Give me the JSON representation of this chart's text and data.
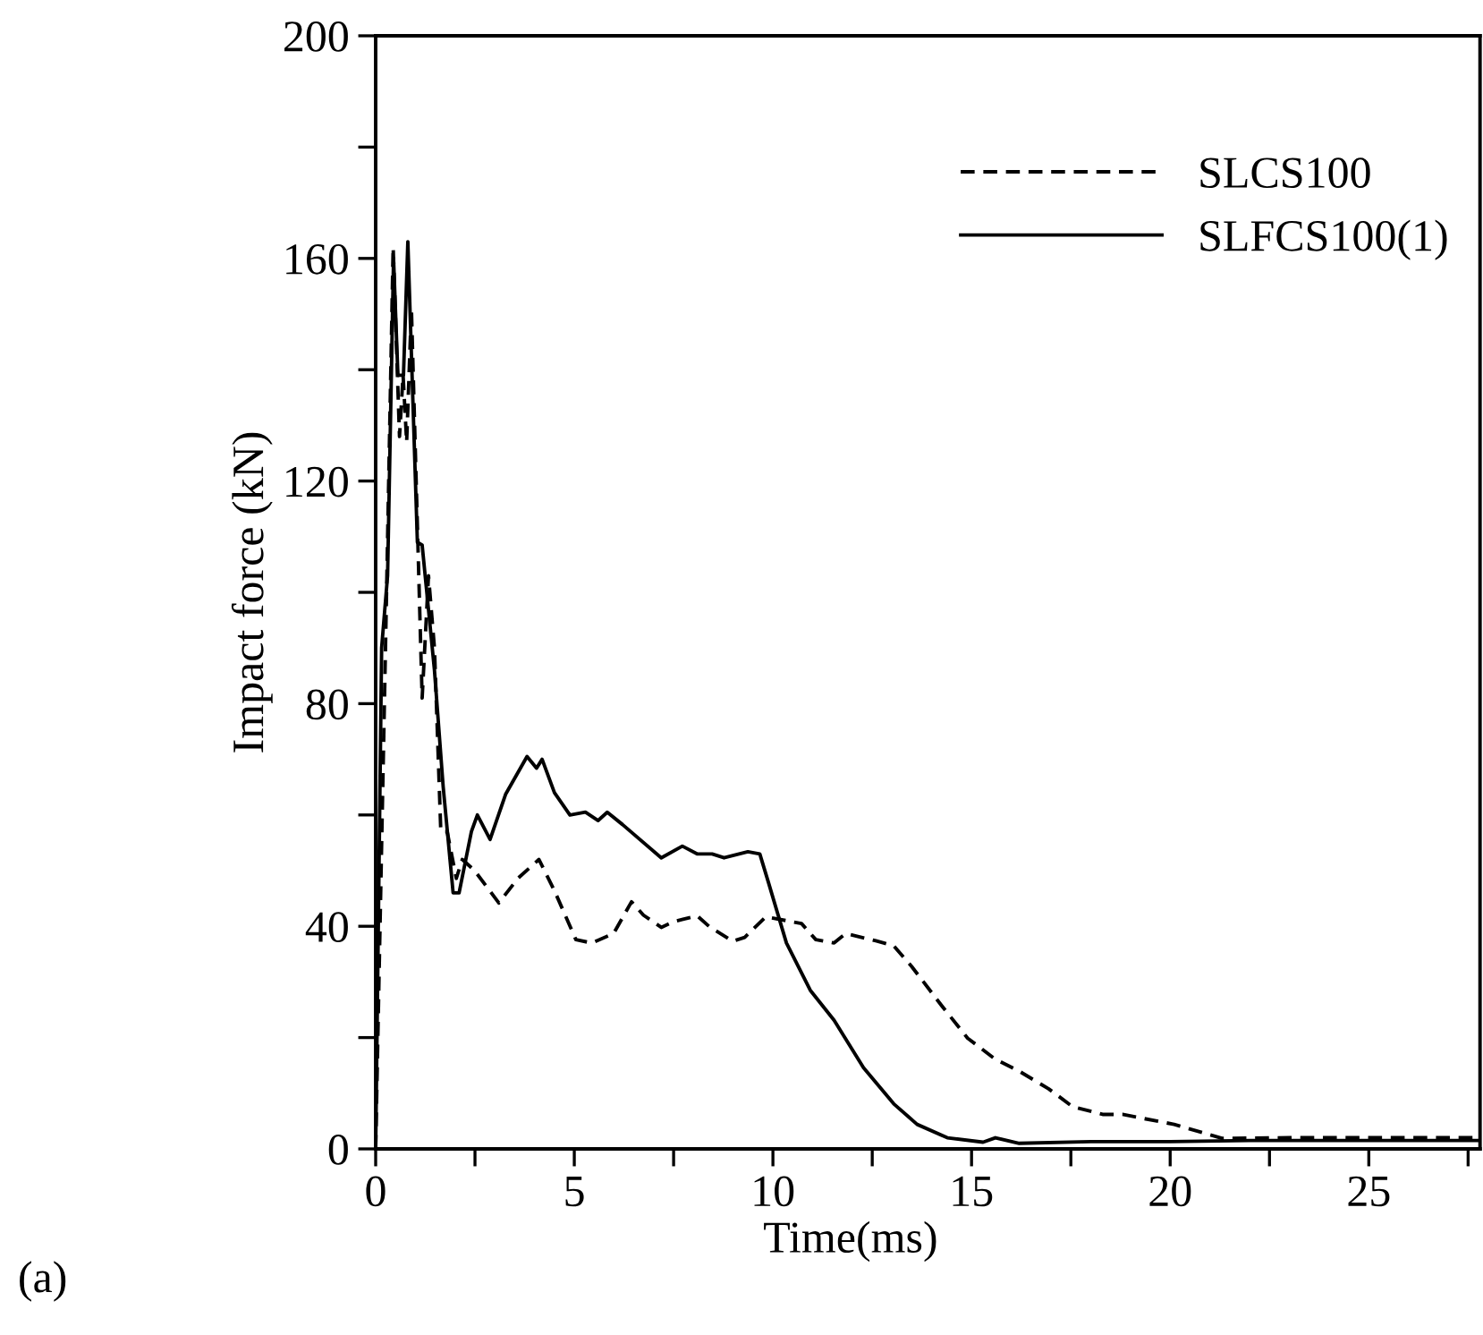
{
  "chart_data": {
    "type": "line",
    "xlabel": "Time(ms)",
    "ylabel": "Impact force (kN)",
    "annotations": [
      "(a)"
    ],
    "xlim": [
      0,
      27.8
    ],
    "ylim": [
      0,
      200
    ],
    "xticks": [
      0,
      {
        "value": 2.5,
        "label": null
      },
      5,
      {
        "value": 7.5,
        "label": null
      },
      10,
      {
        "value": 12.5,
        "label": null
      },
      15,
      {
        "value": 17.5,
        "label": null
      },
      20,
      {
        "value": 22.5,
        "label": null
      },
      25,
      {
        "value": 27.5,
        "label": null
      }
    ],
    "yticks": [
      0,
      {
        "value": 20,
        "label": null
      },
      40,
      {
        "value": 60,
        "label": null
      },
      80,
      {
        "value": 100,
        "label": null
      },
      120,
      {
        "value": 140,
        "label": null
      },
      160,
      {
        "value": 180,
        "label": null
      },
      200
    ],
    "grid": false,
    "legend": "top right",
    "marker": "none",
    "series": [
      {
        "name": "SLCS100",
        "color": "#000000",
        "line_style": "dashed",
        "x": [
          0,
          0.25,
          0.44,
          0.6,
          0.69,
          0.78,
          0.9,
          1.17,
          1.33,
          1.48,
          1.64,
          1.8,
          2.03,
          2.18,
          2.49,
          3.1,
          3.58,
          4.11,
          4.5,
          5.04,
          5.44,
          5.99,
          6.44,
          6.74,
          7.19,
          7.49,
          8.09,
          8.39,
          8.99,
          9.29,
          9.82,
          10.72,
          11.08,
          11.54,
          11.83,
          12.59,
          13.04,
          13.49,
          14.24,
          14.9,
          15.58,
          16.19,
          16.94,
          17.54,
          18.3,
          18.8,
          20.1,
          21.3,
          23,
          25,
          27.8
        ],
        "values": [
          0,
          91,
          162,
          128,
          139,
          127,
          151,
          81,
          103,
          90,
          57,
          57,
          48.6,
          52,
          50,
          44.2,
          48.6,
          52,
          46.4,
          37.6,
          37,
          38.7,
          44.4,
          42,
          39.8,
          40.8,
          41.9,
          40,
          37.3,
          38,
          41.7,
          40.5,
          37.6,
          37,
          38.7,
          37.4,
          36.5,
          32.8,
          25.8,
          19.9,
          16.2,
          14,
          10.8,
          7.6,
          6.2,
          6.2,
          4.4,
          1.9,
          2,
          2,
          2
        ]
      },
      {
        "name": "SLFCS100(1)",
        "color": "#000000",
        "line_style": "solid",
        "x": [
          0,
          0.15,
          0.3,
          0.45,
          0.56,
          0.7,
          0.81,
          1.05,
          1.17,
          1.48,
          1.7,
          1.95,
          2.1,
          2.41,
          2.56,
          2.88,
          3.27,
          3.81,
          4.05,
          4.19,
          4.5,
          4.89,
          5.28,
          5.6,
          5.83,
          6.21,
          7.19,
          7.72,
          8.09,
          8.47,
          8.77,
          9.37,
          9.67,
          9.89,
          10.34,
          10.94,
          11.54,
          12.28,
          13.04,
          13.63,
          14.39,
          15.29,
          15.6,
          16.2,
          18,
          20,
          22,
          25,
          27.8
        ],
        "values": [
          0,
          90,
          103,
          160,
          139,
          139,
          163,
          109,
          108.5,
          86,
          65,
          46,
          46,
          57,
          60,
          55.6,
          63.7,
          70.5,
          68.4,
          70,
          64,
          60,
          60.5,
          59,
          60.5,
          58.3,
          52.3,
          54.4,
          53,
          53,
          52.3,
          53.4,
          53,
          47.8,
          37,
          28.5,
          23.1,
          14.6,
          8.1,
          4.4,
          2,
          1.2,
          2,
          1,
          1.3,
          1.3,
          1.5,
          1.5,
          1.5
        ]
      }
    ]
  }
}
